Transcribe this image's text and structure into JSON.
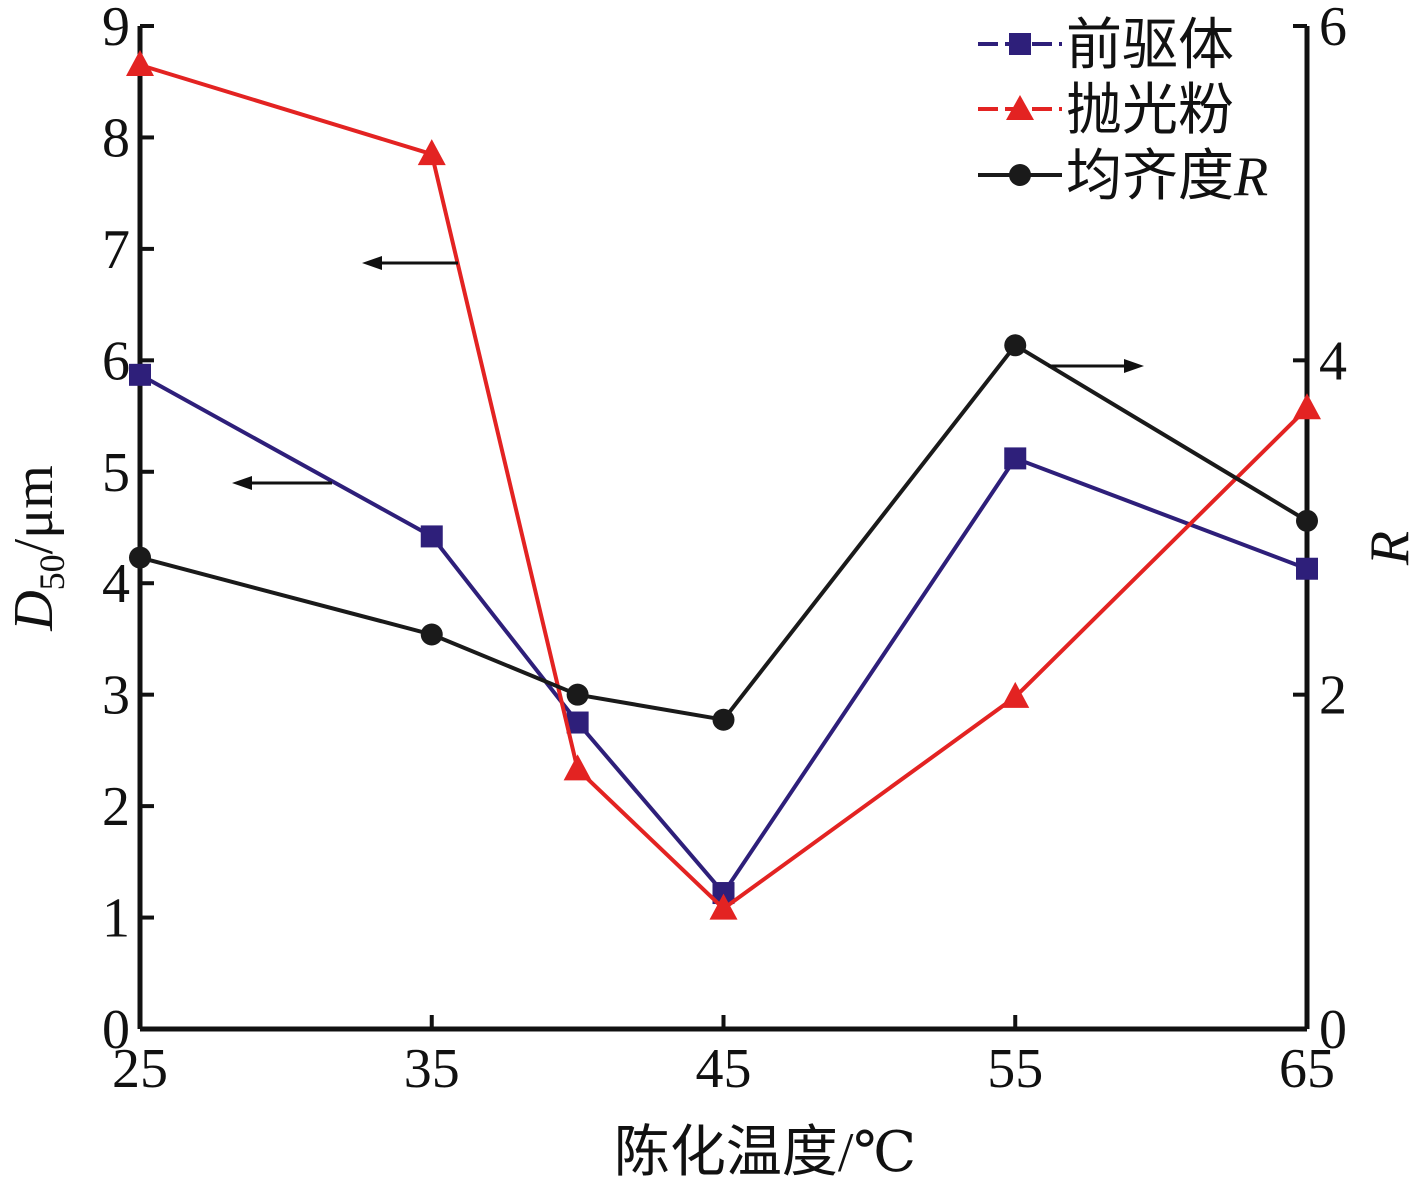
{
  "chart_data": {
    "type": "line",
    "xlabel": "陈化温度/℃",
    "ylabel_left": {
      "main": "D",
      "sub": "50",
      "rest": "/μm"
    },
    "ylabel_right": "R",
    "x_ticks": [
      "25",
      "35",
      "45",
      "55",
      "65"
    ],
    "x_tick_values": [
      25,
      35,
      45,
      55,
      65
    ],
    "xlim": [
      25,
      65
    ],
    "y_left_ticks": [
      "0",
      "1",
      "2",
      "3",
      "4",
      "5",
      "6",
      "7",
      "8",
      "9"
    ],
    "y_left_tick_values": [
      0,
      1,
      2,
      3,
      4,
      5,
      6,
      7,
      8,
      9
    ],
    "ylim_left": [
      0,
      9
    ],
    "y_right_ticks": [
      "0",
      "2",
      "4",
      "6"
    ],
    "y_right_tick_values": [
      0,
      2,
      4,
      6
    ],
    "ylim_right": [
      0,
      6
    ],
    "x": [
      25,
      35,
      40,
      45,
      55,
      65
    ],
    "series": [
      {
        "name": "前驱体",
        "axis": "left",
        "marker": "square",
        "color": "#2e1f7a",
        "values": [
          5.87,
          4.42,
          2.75,
          1.22,
          5.12,
          4.13
        ]
      },
      {
        "name": "抛光粉",
        "axis": "left",
        "marker": "triangle",
        "color": "#e32322",
        "values": [
          8.65,
          7.85,
          2.33,
          1.08,
          2.98,
          5.57
        ]
      },
      {
        "name": "均齐度R",
        "axis": "right",
        "marker": "circle",
        "color": "#1a1a1a",
        "values": [
          2.82,
          2.36,
          2.0,
          1.85,
          4.09,
          3.04
        ]
      }
    ],
    "legend_position": "top-right",
    "grid": false
  }
}
